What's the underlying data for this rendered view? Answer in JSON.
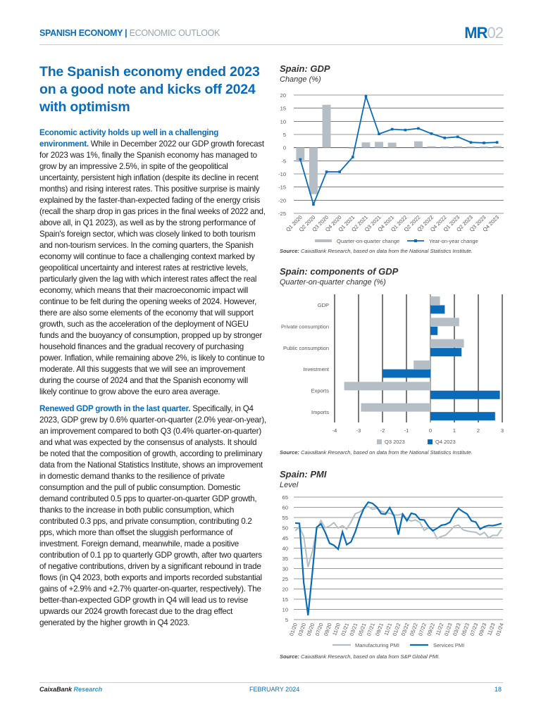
{
  "header": {
    "section": "SPANISH ECONOMY",
    "separator": "|",
    "subsection": "ECONOMIC OUTLOOK",
    "logo_bold": "MR",
    "logo_light": "02"
  },
  "article": {
    "title": "The Spanish economy ended 2023 on a good note and kicks off 2024 with optimism",
    "paragraphs": [
      {
        "lead": "Economic activity holds up well in a challenging environment.",
        "text": " While in December 2022 our GDP growth forecast for 2023 was 1%, finally the Spanish economy has managed to grow by an impressive 2.5%, in spite of the geopolitical uncertainty, persistent high inflation (despite its decline in recent months) and rising interest rates. This positive surprise is mainly explained by the faster-than-expected fading of the energy crisis (recall the sharp drop in gas prices in the final weeks of 2022 and, above all, in Q1 2023), as well as by the strong performance of Spain's foreign sector, which was closely linked to both tourism and non-tourism services. In the coming quarters, the Spanish economy will continue to face a challenging context marked by geopolitical uncertainty and interest rates at restrictive levels, particularly given the lag with which interest rates affect the real economy, which means that their macroeconomic impact will continue to be felt during the opening weeks of 2024. However, there are also some elements of the economy that will support growth, such as the acceleration of the deployment of NGEU funds and the buoyancy of consumption, propped up by stronger household finances and the gradual recovery of purchasing power. Inflation, while remaining above 2%, is likely to continue to moderate. All this suggests that we will see an improvement during the course of 2024 and that the Spanish economy will likely continue to grow above the euro area average."
      },
      {
        "lead": "Renewed GDP growth in the last quarter.",
        "text": " Specifically, in Q4 2023, GDP grew by 0.6% quarter-on-quarter (2.0% year-on-year), an improvement compared to both Q3 (0.4% quarter-on-quarter) and what was expected by the consensus of analysts. It should be noted that the composition of growth, according to preliminary data from the National Statistics Institute, shows an improvement in domestic demand thanks to the resilience of private consumption and the pull of public consumption. Domestic demand contributed 0.5 pps to quarter-on-quarter GDP growth, thanks to the increase in both public consumption, which contributed 0.3 pps, and private consumption, contributing 0.2 pps, which more than offset the sluggish performance of investment. Foreign demand, meanwhile, made a positive contribution of 0.1 pp to quarterly GDP growth, after two quarters of negative contributions, driven by a significant rebound in trade flows (in Q4 2023, both exports and imports recorded substantial gains of +2.9% and +2.7% quarter-on-quarter, respectively). The better-than-expected GDP growth in Q4 will lead us to revise upwards our 2024 growth forecast due to the drag effect generated by the higher growth in Q4 2023."
      }
    ]
  },
  "colors": {
    "blue": "#0a6cb8",
    "grey": "#b5bec4",
    "accent_light": "#1a9be0"
  },
  "chart_data": [
    {
      "type": "bar+line",
      "title": "Spain: GDP",
      "subtitle": "Change (%)",
      "categories": [
        "Q1 2020",
        "Q2 2020",
        "Q3 2020",
        "Q4 2020",
        "Q1 2021",
        "Q2 2021",
        "Q3 2021",
        "Q4 2021",
        "Q1 2022",
        "Q2 2022",
        "Q3 2022",
        "Q4 2022",
        "Q1 2023",
        "Q2 2023",
        "Q3 2023",
        "Q4 2023"
      ],
      "series": [
        {
          "name": "Quarter-on-quarter change",
          "kind": "bar",
          "values": [
            -5.4,
            -17.7,
            16.3,
            0.0,
            -0.4,
            2.0,
            2.2,
            1.9,
            0.0,
            2.4,
            0.5,
            0.4,
            0.5,
            0.4,
            0.4,
            0.6
          ]
        },
        {
          "name": "Year-on-year change",
          "kind": "line",
          "values": [
            -4.5,
            -21.6,
            -9.2,
            -9.2,
            -3.6,
            19.5,
            5.2,
            7.0,
            6.7,
            7.3,
            5.3,
            3.7,
            4.1,
            2.0,
            1.8,
            2.0
          ]
        }
      ],
      "ylim": [
        -25,
        20
      ],
      "yticks": [
        20,
        15,
        10,
        5,
        0,
        -5,
        -10,
        -15,
        -20,
        -25
      ],
      "grid": true,
      "legend": "bottom",
      "source_label": "Source:",
      "source": "CaixaBank Research, based on data from the National Statistics Institute."
    },
    {
      "type": "bar",
      "orientation": "horizontal",
      "title": "Spain: components of GDP",
      "subtitle": "Quarter-on-quarter change (%)",
      "categories": [
        "GDP",
        "Private consumption",
        "Public consumption",
        "Investment",
        "Exports",
        "Imports"
      ],
      "series": [
        {
          "name": "Q3 2023",
          "values": [
            0.4,
            1.2,
            1.4,
            -0.7,
            -3.6,
            -2.9
          ]
        },
        {
          "name": "Q4 2023",
          "values": [
            0.6,
            0.3,
            1.3,
            -2.0,
            2.9,
            2.7
          ]
        }
      ],
      "xlim": [
        -4,
        3
      ],
      "xticks": [
        -4,
        -3,
        -2,
        -1,
        0,
        1,
        2,
        3
      ],
      "grid": true,
      "legend": "bottom",
      "source_label": "Source:",
      "source": "CaixaBank Research, based on data from the National Statistics Institute."
    },
    {
      "type": "line",
      "title": "Spain: PMI",
      "subtitle": "Level",
      "xticks": [
        "01/20",
        "03/20",
        "05/20",
        "07/20",
        "09/20",
        "11/20",
        "01/21",
        "03/21",
        "05/21",
        "07/21",
        "09/21",
        "11/21",
        "01/22",
        "03/22",
        "05/22",
        "07/22",
        "09/22",
        "11/22",
        "01/23",
        "03/23",
        "05/23",
        "07/23",
        "09/23",
        "11/23",
        "01/24"
      ],
      "series": [
        {
          "name": "Manufacturing PMI",
          "values": [
            48.5,
            50.4,
            45.7,
            30.8,
            38.3,
            49.0,
            53.5,
            49.9,
            50.8,
            52.5,
            49.8,
            51.0,
            49.3,
            52.9,
            56.9,
            57.7,
            59.4,
            60.4,
            59.0,
            59.5,
            58.1,
            57.4,
            57.1,
            56.2,
            56.2,
            56.9,
            54.2,
            53.3,
            53.8,
            52.6,
            48.7,
            49.9,
            49.0,
            44.7,
            45.7,
            46.4,
            48.4,
            50.7,
            51.3,
            49.0,
            48.4,
            48.0,
            47.8,
            46.5,
            47.7,
            45.1,
            46.3,
            46.2,
            49.2
          ]
        },
        {
          "name": "Services PMI",
          "values": [
            52.3,
            52.1,
            23.0,
            7.1,
            27.9,
            50.2,
            51.9,
            47.7,
            42.4,
            41.4,
            39.5,
            48.0,
            41.7,
            43.1,
            48.1,
            54.6,
            59.5,
            62.5,
            61.9,
            60.1,
            56.9,
            56.6,
            59.8,
            55.8,
            46.6,
            56.6,
            53.4,
            57.1,
            56.5,
            54.0,
            53.8,
            50.6,
            48.5,
            49.7,
            51.2,
            51.6,
            52.7,
            56.7,
            59.4,
            57.9,
            56.7,
            53.4,
            52.8,
            49.3,
            50.5,
            51.1,
            51.0,
            51.5,
            52.1
          ]
        }
      ],
      "ylim": [
        5,
        65
      ],
      "yticks": [
        65,
        60,
        55,
        50,
        45,
        40,
        35,
        30,
        25,
        20,
        15,
        10,
        5
      ],
      "grid": true,
      "legend": "bottom",
      "source_label": "Source:",
      "source": "CaixaBank Research, based on data from S&P Global PMI."
    }
  ],
  "footer": {
    "brand": "CaixaBank",
    "brand_accent": "Research",
    "date": "FEBRUARY 2024",
    "page": "18"
  }
}
